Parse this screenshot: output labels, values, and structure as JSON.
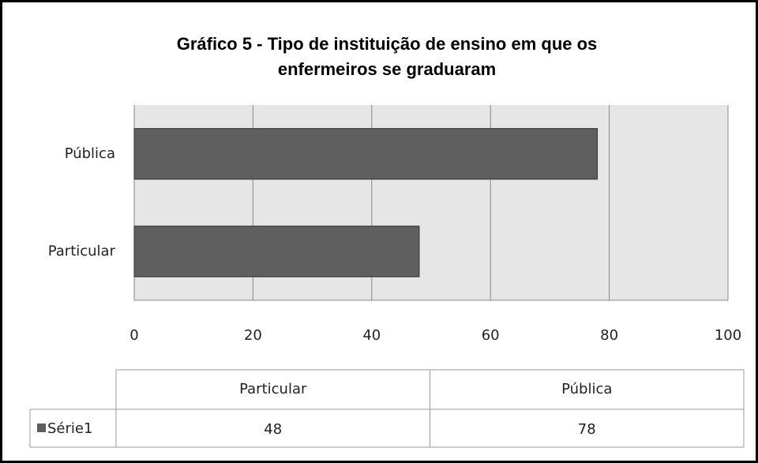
{
  "chart_data": {
    "type": "bar",
    "orientation": "horizontal",
    "title": [
      "Gráfico 5 - Tipo de instituição de ensino em que os",
      "enfermeiros se graduaram"
    ],
    "categories": [
      "Particular",
      "Pública"
    ],
    "series": [
      {
        "name": "Série1",
        "color": "#5f5f5f",
        "values": [
          48,
          78
        ]
      }
    ],
    "xlim": [
      0,
      100
    ],
    "xticks": [
      0,
      20,
      40,
      60,
      80,
      100
    ],
    "grid": true,
    "data_table": true
  }
}
